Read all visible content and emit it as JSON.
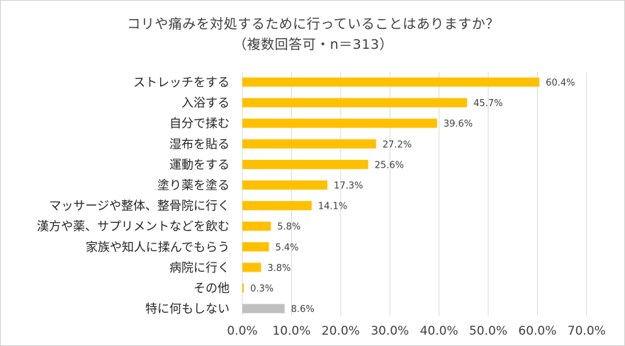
{
  "chart_data": {
    "type": "bar",
    "orientation": "horizontal",
    "title": "コリや痛みを対処するために行っていることはありますか？",
    "subtitle": "（複数回答可・n＝313）",
    "categories": [
      "ストレッチをする",
      "入浴する",
      "自分で揉む",
      "湿布を貼る",
      "運動をする",
      "塗り薬を塗る",
      "マッサージや整体、整骨院に行く",
      "漢方や薬、サプリメントなどを飲む",
      "家族や知人に揉んでもらう",
      "病院に行く",
      "その他",
      "特に何もしない"
    ],
    "values": [
      60.4,
      45.7,
      39.6,
      27.2,
      25.6,
      17.3,
      14.1,
      5.8,
      5.4,
      3.8,
      0.3,
      8.6
    ],
    "data_labels": [
      "60.4%",
      "45.7%",
      "39.6%",
      "27.2%",
      "25.6%",
      "17.3%",
      "14.1%",
      "5.8%",
      "5.4%",
      "3.8%",
      "0.3%",
      "8.6%"
    ],
    "bar_colors": [
      "#FFC000",
      "#FFC000",
      "#FFC000",
      "#FFC000",
      "#FFC000",
      "#FFC000",
      "#FFC000",
      "#FFC000",
      "#FFC000",
      "#FFC000",
      "#FFC000",
      "#BFBFBF"
    ],
    "xlim": [
      0,
      70
    ],
    "xticks": [
      0,
      10,
      20,
      30,
      40,
      50,
      60,
      70
    ],
    "xtick_labels": [
      "0.0%",
      "10.0%",
      "20.0%",
      "30.0%",
      "40.0%",
      "50.0%",
      "60.0%",
      "70.0%"
    ],
    "xlabel": "",
    "ylabel": "",
    "grid": true,
    "gridline_color": "#D9D9D9",
    "label_color": "#404040"
  }
}
